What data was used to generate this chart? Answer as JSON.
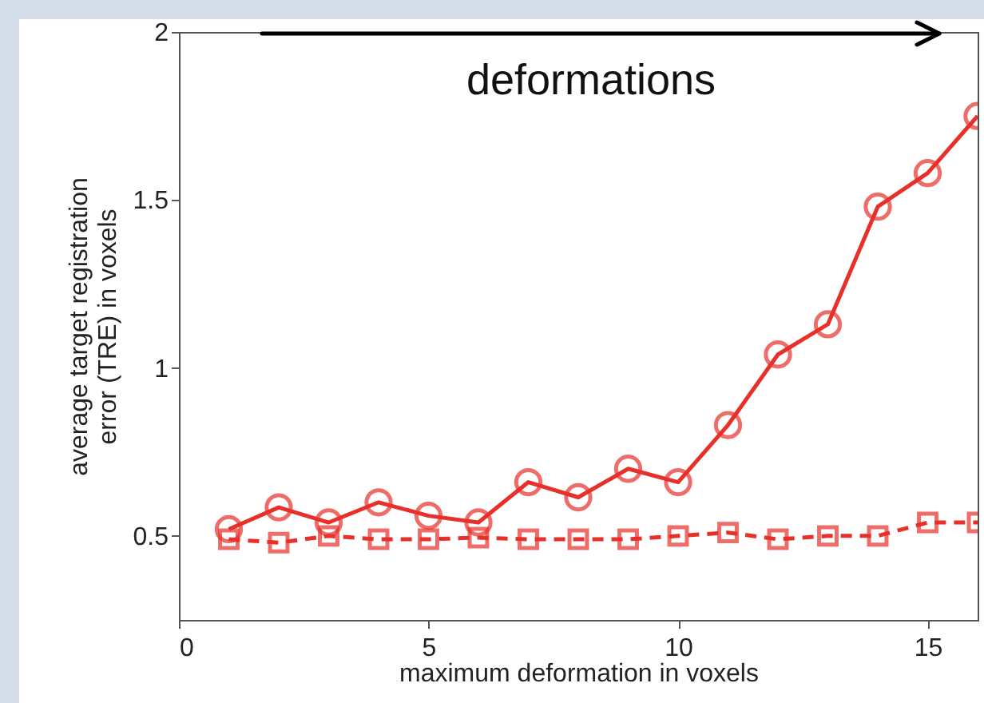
{
  "chart_data": {
    "type": "line",
    "xlabel": "maximum deformation in voxels",
    "ylabel": "average target registration\nerror (TRE) in voxels",
    "annotations": [
      "deformations"
    ],
    "x": [
      1,
      2,
      3,
      4,
      5,
      6,
      7,
      8,
      9,
      10,
      11,
      12,
      13,
      14,
      15,
      16
    ],
    "series": [
      {
        "color": "#e8302a",
        "marker": "circle",
        "line_style": "solid",
        "values": [
          0.52,
          0.585,
          0.54,
          0.6,
          0.56,
          0.54,
          0.66,
          0.615,
          0.7,
          0.66,
          0.83,
          1.04,
          1.13,
          1.48,
          1.58,
          1.75
        ]
      },
      {
        "color": "#e8302a",
        "marker": "square",
        "line_style": "dashed",
        "values": [
          0.49,
          0.48,
          0.5,
          0.49,
          0.49,
          0.495,
          0.49,
          0.49,
          0.49,
          0.5,
          0.51,
          0.49,
          0.5,
          0.5,
          0.54,
          0.54
        ]
      }
    ],
    "xlim": [
      0,
      16
    ],
    "xticks": [
      0,
      5,
      10,
      15
    ],
    "ylim": [
      0.25,
      2
    ],
    "yticks": [
      0.5,
      1,
      1.5,
      2
    ],
    "grid": false
  }
}
